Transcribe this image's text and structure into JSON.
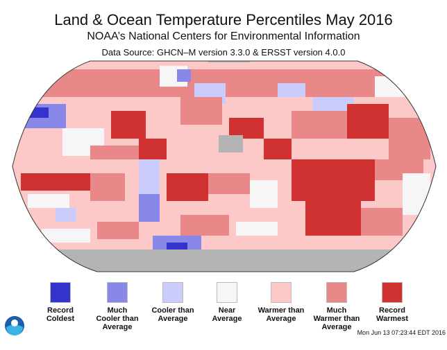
{
  "title": "Land & Ocean Temperature Percentiles May 2016",
  "subtitle": "NOAA’s National Centers for Environmental Information",
  "source": "Data Source: GHCN–M version 3.3.0 & ERSST version 4.0.0",
  "legend": [
    {
      "label": "Record\nColdest",
      "color": "#3434cc"
    },
    {
      "label": "Much\nCooler than\nAverage",
      "color": "#8888e8"
    },
    {
      "label": "Cooler than\nAverage",
      "color": "#ccccfc"
    },
    {
      "label": "Near\nAverage",
      "color": "#f6f6f6"
    },
    {
      "label": "Warmer than\nAverage",
      "color": "#fcc8c8"
    },
    {
      "label": "Much\nWarmer than\nAverage",
      "color": "#e88888"
    },
    {
      "label": "Record\nWarmest",
      "color": "#d03232"
    }
  ],
  "no_data_color": "#b4b4b4",
  "timestamp": "Mon Jun 13 07:23:44 EDT 2016",
  "logo": "NOAA"
}
